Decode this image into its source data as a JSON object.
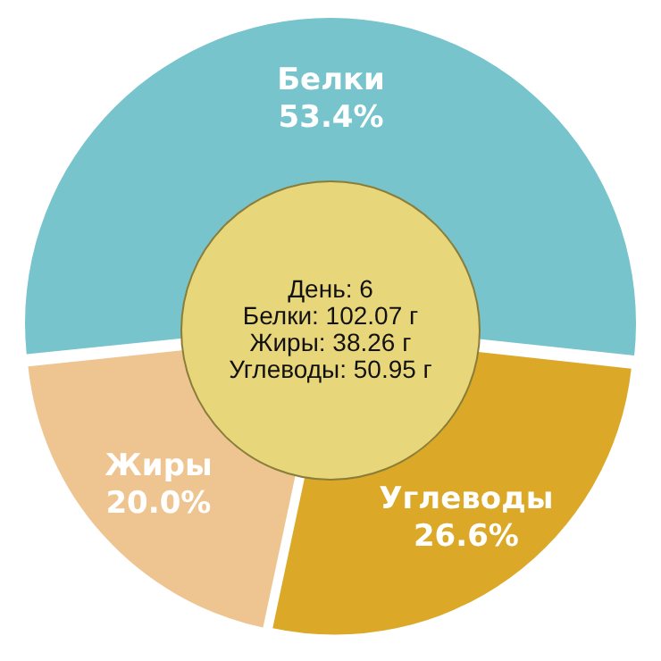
{
  "chart_data": {
    "type": "pie",
    "categories": [
      "Белки",
      "Углеводы",
      "Жиры"
    ],
    "values": [
      53.4,
      26.6,
      20.0
    ],
    "colors": [
      "#77c4cc",
      "#dba827",
      "#eec591"
    ],
    "value_labels": [
      "53.4%",
      "26.6%",
      "20.0%"
    ],
    "annotations": [
      "День: 6",
      "Белки: 102.07 г",
      "Жиры: 38.26 г",
      "Углеводы: 50.95 г"
    ],
    "legend": false
  }
}
